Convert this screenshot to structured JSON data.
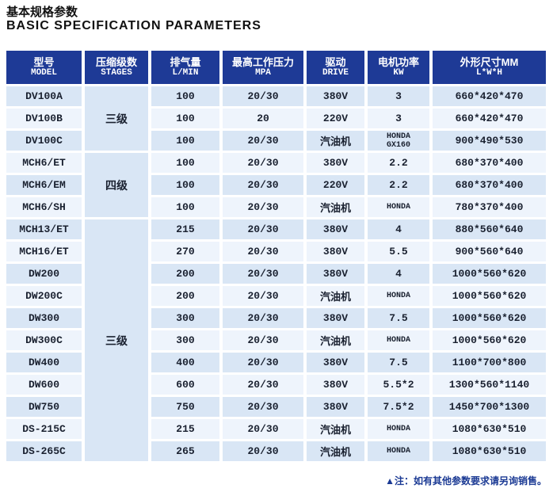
{
  "title": {
    "zh": "基本规格参数",
    "en": "BASIC SPECIFICATION PARAMETERS"
  },
  "colors": {
    "header_bg": "#1e3a96",
    "row_light_blue": "#d9e6f5",
    "row_pale": "#eef4fc",
    "note_text": "#1b3a94"
  },
  "table": {
    "headers": [
      {
        "zh": "型号",
        "en": "MODEL"
      },
      {
        "zh": "压缩级数",
        "en": "STAGES"
      },
      {
        "zh": "排气量",
        "en": "L/MIN"
      },
      {
        "zh": "最高工作压力",
        "en": "MPA"
      },
      {
        "zh": "驱动",
        "en": "DRIVE"
      },
      {
        "zh": "电机功率",
        "en": "KW"
      },
      {
        "zh": "外形尺寸MM",
        "en": "L*W*H"
      }
    ],
    "stages": [
      {
        "label": "三级",
        "rows": "DV100A–DV100C"
      },
      {
        "label": "四级",
        "rows": "MCH6/ET–MCH6/SH"
      },
      {
        "label": "三级",
        "rows": "MCH13/ET–DS-265C"
      }
    ],
    "rows": [
      {
        "model": "DV100A",
        "lmin": "100",
        "mpa": "20/30",
        "drive": "380V",
        "kw": "3",
        "dim": "660*420*470"
      },
      {
        "model": "DV100B",
        "lmin": "100",
        "mpa": "20",
        "drive": "220V",
        "kw": "3",
        "dim": "660*420*470"
      },
      {
        "model": "DV100C",
        "lmin": "100",
        "mpa": "20/30",
        "drive": "汽油机",
        "kw": "HONDA",
        "kw2": "GX160",
        "dim": "900*490*530"
      },
      {
        "model": "MCH6/ET",
        "lmin": "100",
        "mpa": "20/30",
        "drive": "380V",
        "kw": "2.2",
        "dim": "680*370*400"
      },
      {
        "model": "MCH6/EM",
        "lmin": "100",
        "mpa": "20/30",
        "drive": "220V",
        "kw": "2.2",
        "dim": "680*370*400"
      },
      {
        "model": "MCH6/SH",
        "lmin": "100",
        "mpa": "20/30",
        "drive": "汽油机",
        "kw": "HONDA",
        "dim": "780*370*400"
      },
      {
        "model": "MCH13/ET",
        "lmin": "215",
        "mpa": "20/30",
        "drive": "380V",
        "kw": "4",
        "dim": "880*560*640"
      },
      {
        "model": "MCH16/ET",
        "lmin": "270",
        "mpa": "20/30",
        "drive": "380V",
        "kw": "5.5",
        "dim": "900*560*640"
      },
      {
        "model": "DW200",
        "lmin": "200",
        "mpa": "20/30",
        "drive": "380V",
        "kw": "4",
        "dim": "1000*560*620"
      },
      {
        "model": "DW200C",
        "lmin": "200",
        "mpa": "20/30",
        "drive": "汽油机",
        "kw": "HONDA",
        "dim": "1000*560*620"
      },
      {
        "model": "DW300",
        "lmin": "300",
        "mpa": "20/30",
        "drive": "380V",
        "kw": "7.5",
        "dim": "1000*560*620"
      },
      {
        "model": "DW300C",
        "lmin": "300",
        "mpa": "20/30",
        "drive": "汽油机",
        "kw": "HONDA",
        "dim": "1000*560*620"
      },
      {
        "model": "DW400",
        "lmin": "400",
        "mpa": "20/30",
        "drive": "380V",
        "kw": "7.5",
        "dim": "1100*700*800"
      },
      {
        "model": "DW600",
        "lmin": "600",
        "mpa": "20/30",
        "drive": "380V",
        "kw": "5.5*2",
        "dim": "1300*560*1140"
      },
      {
        "model": "DW750",
        "lmin": "750",
        "mpa": "20/30",
        "drive": "380V",
        "kw": "7.5*2",
        "dim": "1450*700*1300"
      },
      {
        "model": "DS-215C",
        "lmin": "215",
        "mpa": "20/30",
        "drive": "汽油机",
        "kw": "HONDA",
        "dim": "1080*630*510"
      },
      {
        "model": "DS-265C",
        "lmin": "265",
        "mpa": "20/30",
        "drive": "汽油机",
        "kw": "HONDA",
        "dim": "1080*630*510"
      }
    ]
  },
  "note": "▲注：如有其他参数要求请另询销售。"
}
